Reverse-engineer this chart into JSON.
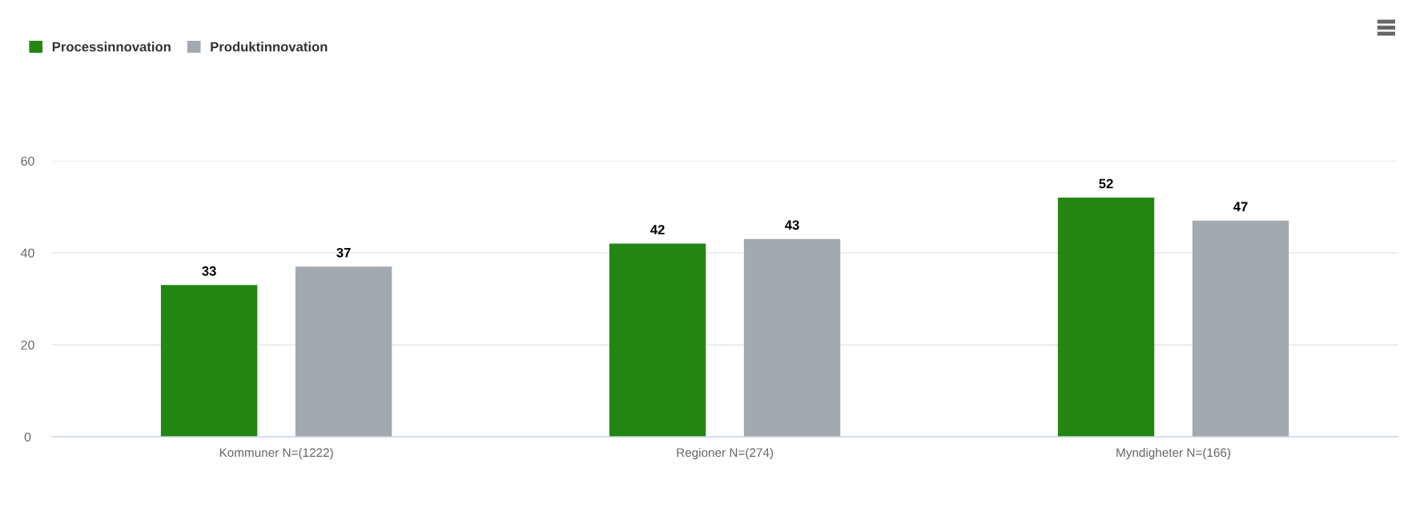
{
  "chart_data": {
    "type": "bar",
    "categories": [
      "Kommuner N=(1222)",
      "Regioner N=(274)",
      "Myndigheter N=(166)"
    ],
    "series": [
      {
        "name": "Processinnovation",
        "color": "#248612",
        "values": [
          33,
          42,
          52
        ]
      },
      {
        "name": "Produktinnovation",
        "color": "#a3a9af",
        "values": [
          37,
          43,
          47
        ]
      }
    ],
    "ylim": [
      0,
      60
    ],
    "yticks": [
      0,
      20,
      40,
      60
    ],
    "grid": "y",
    "legend": "top left",
    "data_labels": true
  }
}
